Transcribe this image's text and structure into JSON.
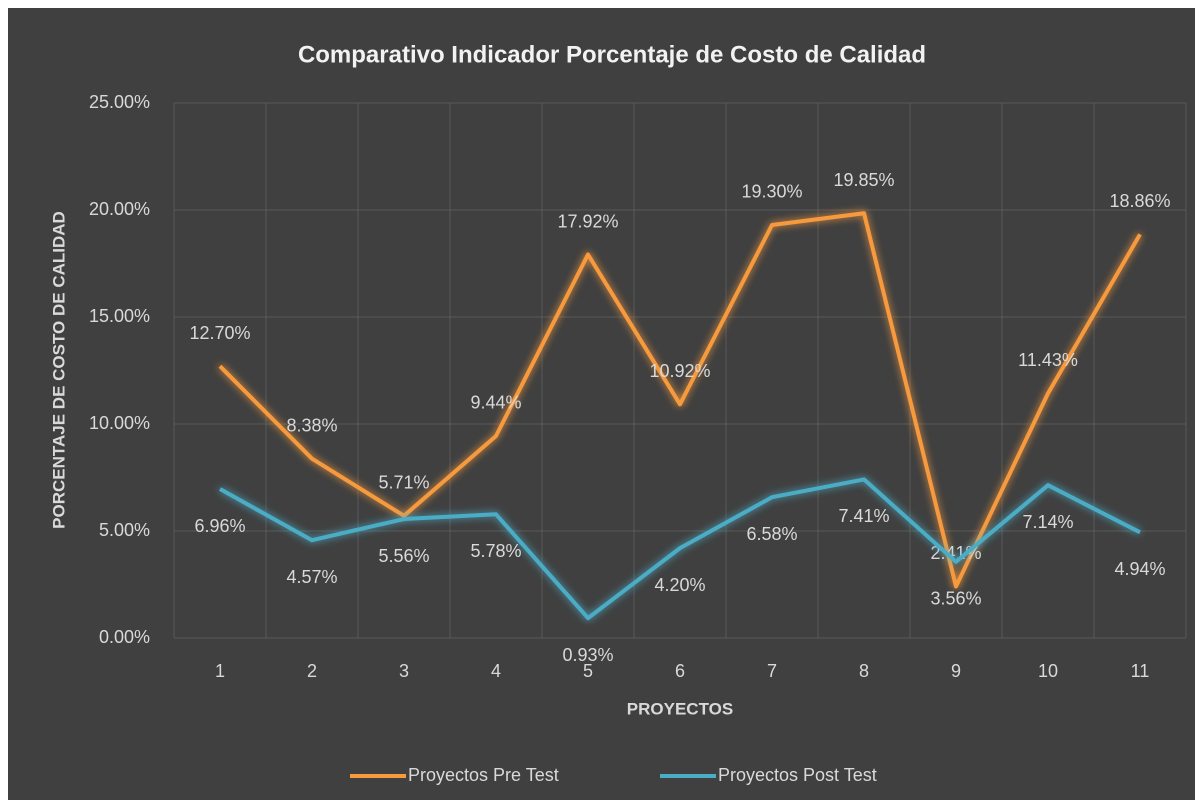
{
  "chart_data": {
    "type": "line",
    "title": "Comparativo Indicador Porcentaje de Costo de Calidad",
    "x_label": "PROYECTOS",
    "y_label": "PORCENTAJE DE COSTO DE CALIDAD",
    "categories": [
      "1",
      "2",
      "3",
      "4",
      "5",
      "6",
      "7",
      "8",
      "9",
      "10",
      "11"
    ],
    "series": [
      {
        "name": "Proyectos Pre Test",
        "color": "#f79a3e",
        "values": [
          12.7,
          8.38,
          5.71,
          9.44,
          17.92,
          10.92,
          19.3,
          19.85,
          2.41,
          11.43,
          18.86
        ],
        "value_labels": [
          "12.70%",
          "8.38%",
          "5.71%",
          "9.44%",
          "17.92%",
          "10.92%",
          "19.30%",
          "19.85%",
          "2.41%",
          "11.43%",
          "18.86%"
        ]
      },
      {
        "name": "Proyectos Post Test",
        "color": "#4bacc6",
        "values": [
          6.96,
          4.57,
          5.56,
          5.78,
          0.93,
          4.2,
          6.58,
          7.41,
          3.56,
          7.14,
          4.94
        ],
        "value_labels": [
          "6.96%",
          "4.57%",
          "5.56%",
          "5.78%",
          "0.93%",
          "4.20%",
          "6.58%",
          "7.41%",
          "3.56%",
          "7.14%",
          "4.94%"
        ]
      }
    ],
    "ylim": [
      0,
      25
    ],
    "yticks": [
      {
        "value": 0,
        "label": "0.00%"
      },
      {
        "value": 5,
        "label": "5.00%"
      },
      {
        "value": 10,
        "label": "10.00%"
      },
      {
        "value": 15,
        "label": "15.00%"
      },
      {
        "value": 20,
        "label": "20.00%"
      },
      {
        "value": 25,
        "label": "25.00%"
      }
    ],
    "grid": true,
    "legend": "bottom"
  }
}
